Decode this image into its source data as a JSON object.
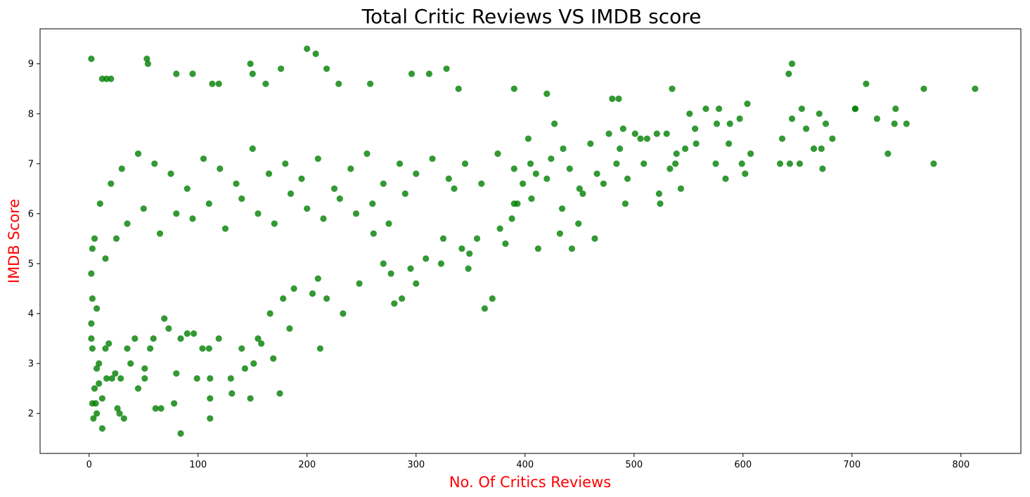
{
  "chart_data": {
    "type": "scatter",
    "title": "Total Critic Reviews VS IMDB score",
    "xlabel": "No. Of Critics Reviews",
    "ylabel": "IMDB Score",
    "xlim": [
      -45,
      855
    ],
    "ylim": [
      1.2,
      9.7
    ],
    "xticks": [
      "0",
      "100",
      "200",
      "300",
      "400",
      "500",
      "600",
      "700",
      "800"
    ],
    "yticks": [
      "2",
      "3",
      "4",
      "5",
      "6",
      "7",
      "8",
      "9"
    ],
    "grid": false,
    "legend": "none",
    "marker_color": "#008000",
    "label_color": "#ff0000",
    "points": [
      [
        2,
        9.1
      ],
      [
        53,
        9.1
      ],
      [
        54,
        9.0
      ],
      [
        148,
        9.0
      ],
      [
        645,
        9.0
      ],
      [
        200,
        9.3
      ],
      [
        208,
        9.2
      ],
      [
        642,
        8.8
      ],
      [
        713,
        8.6
      ],
      [
        766,
        8.5
      ],
      [
        813,
        8.5
      ],
      [
        535,
        8.5
      ],
      [
        390,
        8.5
      ],
      [
        339,
        8.5
      ],
      [
        328,
        8.9
      ],
      [
        218,
        8.9
      ],
      [
        176,
        8.9
      ],
      [
        80,
        8.8
      ],
      [
        95,
        8.8
      ],
      [
        150,
        8.8
      ],
      [
        312,
        8.8
      ],
      [
        296,
        8.8
      ],
      [
        12,
        8.7
      ],
      [
        16,
        8.7
      ],
      [
        20,
        8.7
      ],
      [
        113,
        8.6
      ],
      [
        119,
        8.6
      ],
      [
        162,
        8.6
      ],
      [
        229,
        8.6
      ],
      [
        258,
        8.6
      ],
      [
        703,
        8.1
      ],
      [
        740,
        8.1
      ],
      [
        750,
        7.8
      ],
      [
        739,
        7.8
      ],
      [
        733,
        7.2
      ],
      [
        775,
        7.0
      ],
      [
        723,
        7.9
      ],
      [
        703,
        8.1
      ],
      [
        682,
        7.5
      ],
      [
        676,
        7.8
      ],
      [
        672,
        7.3
      ],
      [
        673,
        6.9
      ],
      [
        670,
        8.0
      ],
      [
        665,
        7.3
      ],
      [
        658,
        7.7
      ],
      [
        654,
        8.1
      ],
      [
        652,
        7.0
      ],
      [
        645,
        7.9
      ],
      [
        643,
        7.0
      ],
      [
        636,
        7.5
      ],
      [
        634,
        7.0
      ],
      [
        607,
        7.2
      ],
      [
        604,
        8.2
      ],
      [
        602,
        6.8
      ],
      [
        599,
        7.0
      ],
      [
        597,
        7.9
      ],
      [
        588,
        7.8
      ],
      [
        587,
        7.4
      ],
      [
        584,
        6.7
      ],
      [
        578,
        8.1
      ],
      [
        575,
        7.0
      ],
      [
        576,
        7.8
      ],
      [
        566,
        8.1
      ],
      [
        557,
        7.4
      ],
      [
        556,
        7.7
      ],
      [
        551,
        8.0
      ],
      [
        547,
        7.3
      ],
      [
        543,
        6.5
      ],
      [
        539,
        7.2
      ],
      [
        538,
        7.0
      ],
      [
        533,
        6.9
      ],
      [
        530,
        7.6
      ],
      [
        523,
        6.4
      ],
      [
        524,
        6.2
      ],
      [
        521,
        7.6
      ],
      [
        512,
        7.5
      ],
      [
        509,
        7.0
      ],
      [
        506,
        7.5
      ],
      [
        501,
        7.6
      ],
      [
        492,
        6.2
      ],
      [
        494,
        6.7
      ],
      [
        490,
        7.7
      ],
      [
        486,
        8.3
      ],
      [
        487,
        7.3
      ],
      [
        484,
        7.0
      ],
      [
        480,
        8.3
      ],
      [
        477,
        7.6
      ],
      [
        472,
        6.6
      ],
      [
        466,
        6.8
      ],
      [
        464,
        5.5
      ],
      [
        460,
        7.4
      ],
      [
        453,
        6.4
      ],
      [
        450,
        6.5
      ],
      [
        449,
        5.8
      ],
      [
        443,
        5.3
      ],
      [
        441,
        6.9
      ],
      [
        434,
        6.1
      ],
      [
        432,
        5.6
      ],
      [
        427,
        7.8
      ],
      [
        424,
        7.1
      ],
      [
        420,
        8.4
      ],
      [
        412,
        5.3
      ],
      [
        410,
        6.8
      ],
      [
        406,
        6.3
      ],
      [
        403,
        7.5
      ],
      [
        398,
        6.6
      ],
      [
        393,
        6.2
      ],
      [
        390,
        6.2
      ],
      [
        388,
        5.9
      ],
      [
        382,
        5.4
      ],
      [
        377,
        5.7
      ],
      [
        370,
        4.3
      ],
      [
        363,
        4.1
      ],
      [
        356,
        5.5
      ],
      [
        349,
        5.2
      ],
      [
        348,
        4.9
      ],
      [
        342,
        5.3
      ],
      [
        335,
        6.5
      ],
      [
        325,
        5.5
      ],
      [
        323,
        5.0
      ],
      [
        309,
        5.1
      ],
      [
        300,
        4.6
      ],
      [
        295,
        4.9
      ],
      [
        287,
        4.3
      ],
      [
        280,
        4.2
      ],
      [
        277,
        4.8
      ],
      [
        270,
        5.0
      ],
      [
        261,
        5.6
      ],
      [
        248,
        4.6
      ],
      [
        233,
        4.0
      ],
      [
        218,
        4.3
      ],
      [
        212,
        3.3
      ],
      [
        210,
        4.7
      ],
      [
        205,
        4.4
      ],
      [
        188,
        4.5
      ],
      [
        184,
        3.7
      ],
      [
        178,
        4.3
      ],
      [
        175,
        2.4
      ],
      [
        169,
        3.1
      ],
      [
        166,
        4.0
      ],
      [
        158,
        3.4
      ],
      [
        155,
        3.5
      ],
      [
        151,
        3.0
      ],
      [
        148,
        2.3
      ],
      [
        143,
        2.9
      ],
      [
        140,
        3.3
      ],
      [
        131,
        2.4
      ],
      [
        130,
        2.7
      ],
      [
        119,
        3.5
      ],
      [
        111,
        2.7
      ],
      [
        111,
        2.3
      ],
      [
        111,
        1.9
      ],
      [
        110,
        3.3
      ],
      [
        104,
        3.3
      ],
      [
        99,
        2.7
      ],
      [
        96,
        3.6
      ],
      [
        90,
        3.6
      ],
      [
        84,
        3.5
      ],
      [
        84,
        1.6
      ],
      [
        80,
        2.8
      ],
      [
        78,
        2.2
      ],
      [
        73,
        3.7
      ],
      [
        69,
        3.9
      ],
      [
        66,
        2.1
      ],
      [
        61,
        2.1
      ],
      [
        59,
        3.5
      ],
      [
        56,
        3.3
      ],
      [
        51,
        2.7
      ],
      [
        51,
        2.9
      ],
      [
        45,
        2.5
      ],
      [
        42,
        3.5
      ],
      [
        38,
        3.0
      ],
      [
        35,
        3.3
      ],
      [
        32,
        1.9
      ],
      [
        29,
        2.7
      ],
      [
        28,
        2.0
      ],
      [
        26,
        2.1
      ],
      [
        24,
        2.8
      ],
      [
        21,
        2.7
      ],
      [
        18,
        3.4
      ],
      [
        16,
        2.7
      ],
      [
        15,
        3.3
      ],
      [
        12,
        2.3
      ],
      [
        12,
        1.7
      ],
      [
        9,
        3.0
      ],
      [
        9,
        2.6
      ],
      [
        7,
        2.0
      ],
      [
        6,
        2.2
      ],
      [
        5,
        2.5
      ],
      [
        4,
        1.9
      ],
      [
        3,
        2.2
      ],
      [
        3,
        3.3
      ],
      [
        2,
        3.5
      ],
      [
        2,
        3.8
      ],
      [
        3,
        4.3
      ],
      [
        2,
        4.8
      ],
      [
        3,
        5.3
      ],
      [
        5,
        5.5
      ],
      [
        7,
        4.1
      ],
      [
        7,
        2.9
      ],
      [
        10,
        6.2
      ],
      [
        20,
        6.6
      ],
      [
        30,
        6.9
      ],
      [
        45,
        7.2
      ],
      [
        60,
        7.0
      ],
      [
        75,
        6.8
      ],
      [
        90,
        6.5
      ],
      [
        105,
        7.1
      ],
      [
        120,
        6.9
      ],
      [
        135,
        6.6
      ],
      [
        150,
        7.3
      ],
      [
        165,
        6.8
      ],
      [
        180,
        7.0
      ],
      [
        195,
        6.7
      ],
      [
        210,
        7.1
      ],
      [
        225,
        6.5
      ],
      [
        240,
        6.9
      ],
      [
        255,
        7.2
      ],
      [
        270,
        6.6
      ],
      [
        285,
        7.0
      ],
      [
        300,
        6.8
      ],
      [
        315,
        7.1
      ],
      [
        330,
        6.7
      ],
      [
        345,
        7.0
      ],
      [
        360,
        6.6
      ],
      [
        375,
        7.2
      ],
      [
        390,
        6.9
      ],
      [
        405,
        7.0
      ],
      [
        420,
        6.7
      ],
      [
        435,
        7.3
      ],
      [
        15,
        5.1
      ],
      [
        25,
        5.5
      ],
      [
        35,
        5.8
      ],
      [
        50,
        6.1
      ],
      [
        65,
        5.6
      ],
      [
        80,
        6.0
      ],
      [
        95,
        5.9
      ],
      [
        110,
        6.2
      ],
      [
        125,
        5.7
      ],
      [
        140,
        6.3
      ],
      [
        155,
        6.0
      ],
      [
        170,
        5.8
      ],
      [
        185,
        6.4
      ],
      [
        200,
        6.1
      ],
      [
        215,
        5.9
      ],
      [
        230,
        6.3
      ],
      [
        245,
        6.0
      ],
      [
        260,
        6.2
      ],
      [
        275,
        5.8
      ],
      [
        290,
        6.4
      ]
    ]
  }
}
